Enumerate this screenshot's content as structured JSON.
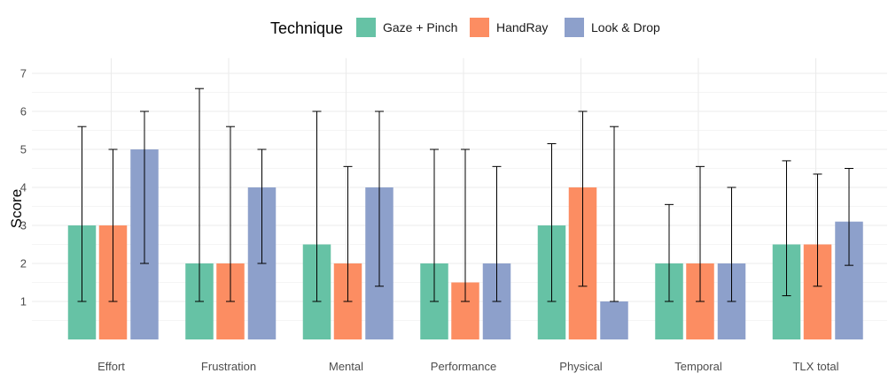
{
  "chart_data": {
    "type": "bar",
    "legend": {
      "title": "Technique",
      "position": "top"
    },
    "ylabel": "Score",
    "xlabel": "",
    "ylim": [
      0,
      7.4
    ],
    "yticks": [
      1,
      2,
      3,
      4,
      5,
      6,
      7
    ],
    "grid": true,
    "categories": [
      "Effort",
      "Frustration",
      "Mental",
      "Performance",
      "Physical",
      "Temporal",
      "TLX total"
    ],
    "series": [
      {
        "name": "Gaze + Pinch",
        "color": "#66c2a5",
        "values": [
          3,
          2,
          2.5,
          2,
          3,
          2,
          2.5
        ],
        "error_low": [
          1,
          1,
          1,
          1,
          1,
          1,
          1.15
        ],
        "error_high": [
          5.6,
          6.6,
          6,
          5,
          5.15,
          3.55,
          4.7
        ]
      },
      {
        "name": "HandRay",
        "color": "#fc8d62",
        "values": [
          3,
          2,
          2,
          1.5,
          4,
          2,
          2.5
        ],
        "error_low": [
          1,
          1,
          1,
          1,
          1.4,
          1,
          1.4
        ],
        "error_high": [
          5,
          5.6,
          4.55,
          5,
          6,
          4.55,
          4.35
        ]
      },
      {
        "name": "Look & Drop",
        "color": "#8da0cb",
        "values": [
          5,
          4,
          4,
          2,
          1,
          2,
          3.1
        ],
        "error_low": [
          2,
          2,
          1.4,
          1,
          1,
          1,
          1.95
        ],
        "error_high": [
          6,
          5,
          6,
          4.55,
          5.6,
          4,
          4.5
        ]
      }
    ]
  }
}
